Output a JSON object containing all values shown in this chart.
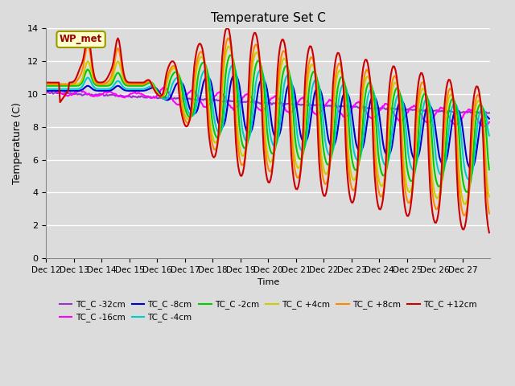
{
  "title": "Temperature Set C",
  "xlabel": "Time",
  "ylabel": "Temperature (C)",
  "ylim": [
    0,
    14
  ],
  "xlim": [
    0,
    384
  ],
  "background_color": "#dcdcdc",
  "plot_bg_color": "#dcdcdc",
  "grid_color": "#ffffff",
  "annotation_text": "WP_met",
  "annotation_bg": "#ffffcc",
  "annotation_border": "#999900",
  "series": [
    {
      "label": "TC_C -32cm",
      "color": "#9933cc",
      "lw": 1.5
    },
    {
      "label": "TC_C -16cm",
      "color": "#ff00ff",
      "lw": 1.5
    },
    {
      "label": "TC_C -8cm",
      "color": "#0000cc",
      "lw": 1.5
    },
    {
      "label": "TC_C -4cm",
      "color": "#00cccc",
      "lw": 1.5
    },
    {
      "label": "TC_C -2cm",
      "color": "#00cc00",
      "lw": 1.5
    },
    {
      "label": "TC_C +4cm",
      "color": "#cccc00",
      "lw": 1.5
    },
    {
      "label": "TC_C +8cm",
      "color": "#ff8800",
      "lw": 1.5
    },
    {
      "label": "TC_C +12cm",
      "color": "#cc0000",
      "lw": 1.5
    }
  ],
  "xtick_labels": [
    "Dec 12",
    "Dec 13",
    "Dec 14",
    "Dec 15",
    "Dec 16",
    "Dec 17",
    "Dec 18",
    "Dec 19",
    "Dec 20",
    "Dec 21",
    "Dec 22",
    "Dec 23",
    "Dec 24",
    "Dec 25",
    "Dec 26",
    "Dec 27"
  ],
  "xtick_positions": [
    0,
    24,
    48,
    72,
    96,
    120,
    144,
    168,
    192,
    216,
    240,
    264,
    288,
    312,
    336,
    360
  ]
}
